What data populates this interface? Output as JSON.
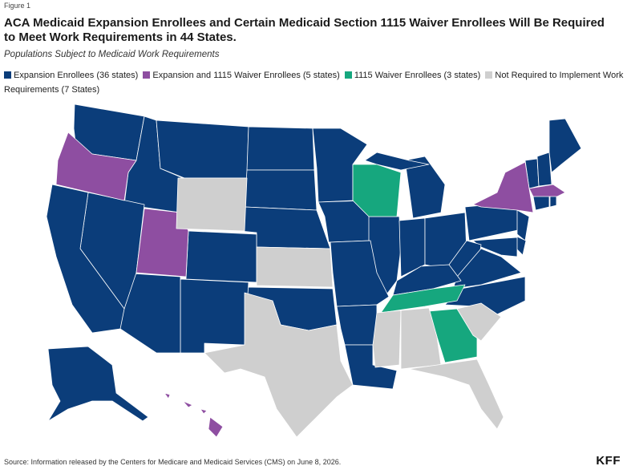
{
  "figure_label": "Figure 1",
  "title": "ACA Medicaid Expansion Enrollees and Certain Medicaid Section 1115 Waiver Enrollees Will Be Required to Meet Work Requirements in 44 States.",
  "subtitle": "Populations Subject to Medicaid Work Requirements",
  "legend": [
    {
      "label": "Expansion Enrollees (36 states)",
      "color": "#0b3d7a"
    },
    {
      "label": "Expansion and 1115 Waiver Enrollees (5 states)",
      "color": "#8e4ea1"
    },
    {
      "label": "1115 Waiver Enrollees (3 states)",
      "color": "#16a77e"
    },
    {
      "label": "Not Required to Implement Work Requirements (7 States)",
      "color": "#cfcfcf"
    }
  ],
  "categories": {
    "expansion": [
      "WA",
      "ID",
      "MT",
      "ND",
      "MN",
      "SD",
      "NE",
      "IA",
      "IL",
      "IN",
      "MI",
      "OH",
      "PA",
      "NY-excluded",
      "CA",
      "NV",
      "AZ",
      "NM",
      "CO",
      "OK",
      "MO",
      "AR",
      "LA",
      "KY",
      "WV",
      "VA",
      "NC",
      "MD",
      "DE",
      "NJ",
      "CT",
      "RI",
      "VT",
      "NH",
      "ME",
      "AK"
    ],
    "expansion_and_1115": [
      "OR",
      "UT",
      "NY",
      "MA",
      "HI"
    ],
    "waiver_1115": [
      "WI",
      "TN",
      "GA"
    ],
    "not_required": [
      "WY",
      "KS",
      "TX",
      "MS",
      "AL",
      "SC",
      "FL"
    ]
  },
  "source": "Source: Information released by the Centers for Medicare and Medicaid Services (CMS) on June 8, 2026.",
  "logo": "KFF"
}
